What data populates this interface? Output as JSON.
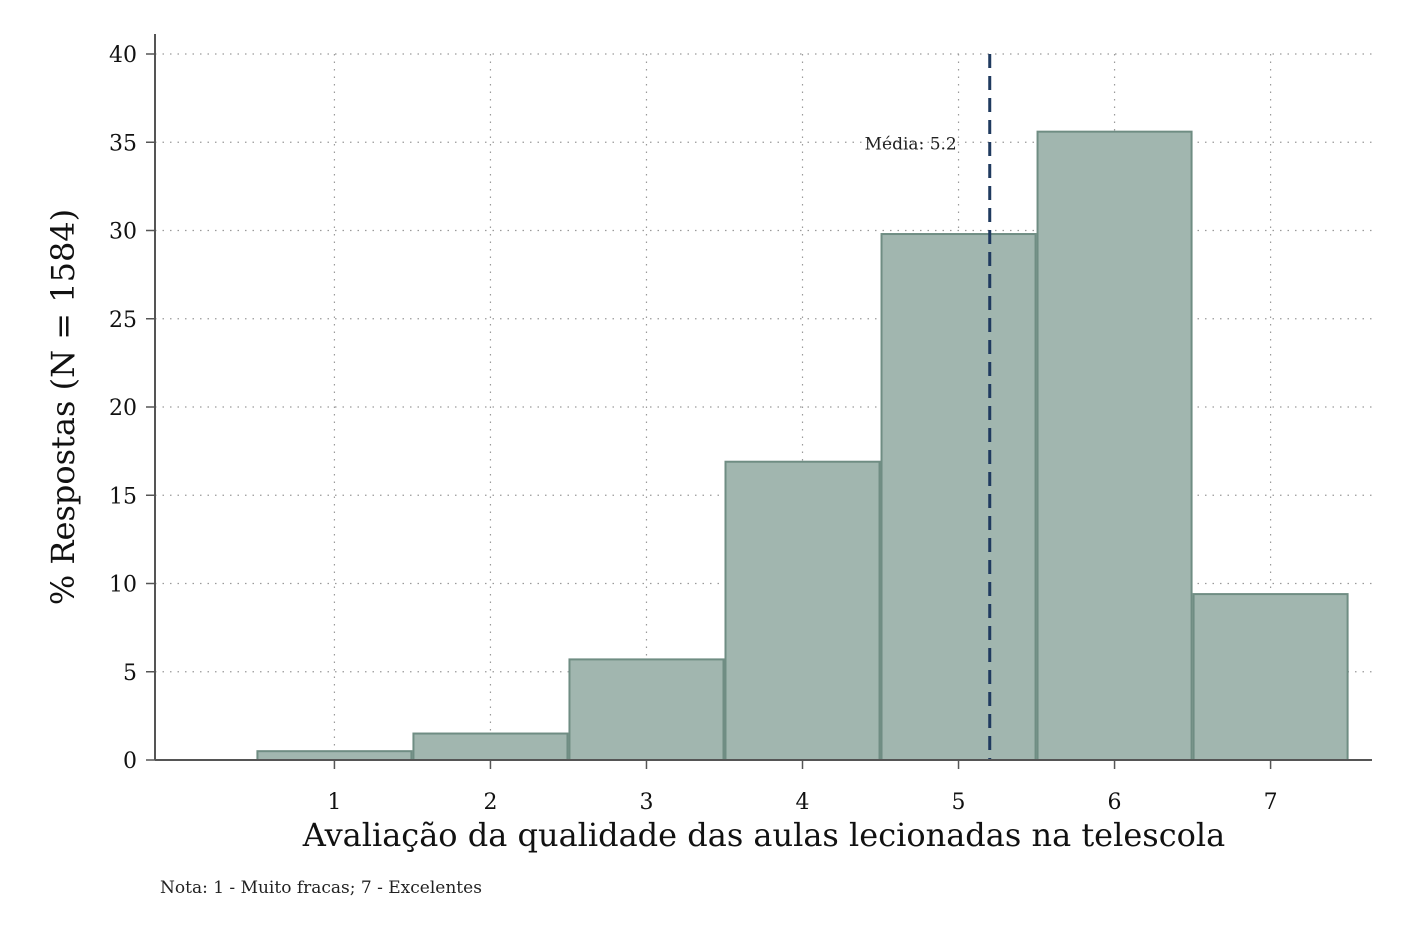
{
  "chart_data": {
    "type": "bar",
    "categories": [
      "1",
      "2",
      "3",
      "4",
      "5",
      "6",
      "7"
    ],
    "values": [
      0.5,
      1.5,
      5.7,
      16.9,
      29.8,
      35.6,
      9.4
    ],
    "xlabel": "Avaliação da qualidade das aulas lecionadas na telescola",
    "ylabel": "% Respostas (N = 1584)",
    "ylim": [
      0,
      40
    ],
    "yticks": [
      "0",
      "5",
      "10",
      "15",
      "20",
      "25",
      "30",
      "35",
      "40"
    ],
    "xlim": [
      -0.15,
      7.65
    ],
    "grid": true,
    "mean_value": 5.2,
    "mean_label": "Média: 5.2",
    "note": "Nota: 1 - Muito fracas; 7 - Excelentes",
    "colors": {
      "bar_fill": "#a1b6af",
      "bar_stroke": "#6f8d83",
      "mean_line": "#1f3a5f",
      "grid": "#9a9a9a",
      "axis": "#555555"
    }
  }
}
